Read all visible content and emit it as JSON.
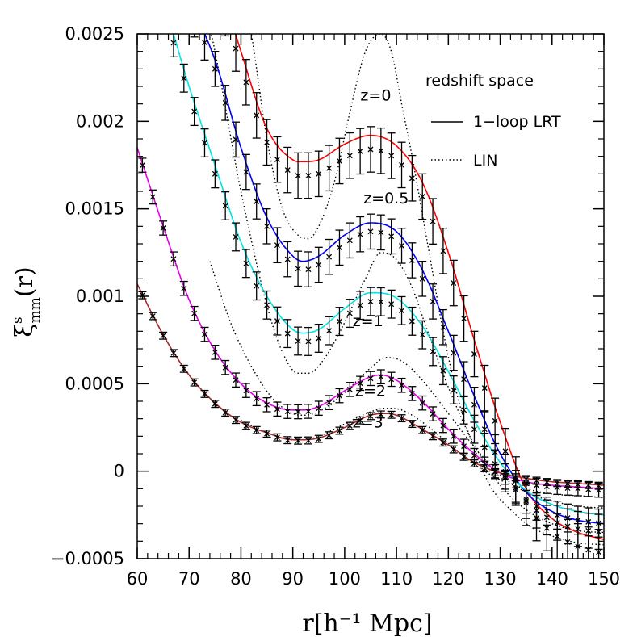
{
  "chart_data": {
    "type": "line",
    "xlabel": "r[h⁻¹ Mpc]",
    "ylabel": "ξˢmm(r)",
    "ylabel_parts": {
      "symbol": "ξ",
      "superscript": "s",
      "subscript": "mm",
      "arg": "(r)"
    },
    "xlim": [
      60,
      150
    ],
    "ylim": [
      -0.0005,
      0.0025
    ],
    "xticks": [
      60,
      70,
      80,
      90,
      100,
      110,
      120,
      130,
      140,
      150
    ],
    "xtick_labels": [
      "60",
      "70",
      "80",
      "90",
      "100",
      "110",
      "120",
      "130",
      "140",
      "150"
    ],
    "yticks": [
      -0.0005,
      0,
      0.0005,
      0.001,
      0.0015,
      0.002,
      0.0025
    ],
    "ytick_labels": [
      "−0.0005",
      "0",
      "0.0005",
      "0.001",
      "0.0015",
      "0.002",
      "0.0025"
    ],
    "grid": false,
    "legend": {
      "title": "redshift space",
      "position": "top-right",
      "entries": [
        {
          "label": "1−loop LRT",
          "style": "solid"
        },
        {
          "label": "LIN",
          "style": "dotted"
        }
      ]
    },
    "redshift_labels": [
      {
        "text": "z=0",
        "x": 106,
        "y": 0.00212
      },
      {
        "text": "z=0.5",
        "x": 108,
        "y": 0.00153
      },
      {
        "text": "z=1",
        "x": 104.5,
        "y": 0.00083
      },
      {
        "text": "z=2",
        "x": 105,
        "y": 0.00043
      },
      {
        "text": "z=3",
        "x": 104.5,
        "y": 0.00025
      }
    ],
    "series": [
      {
        "redshift": "z=0",
        "color": "#ff0000",
        "x": [
          76,
          80,
          85,
          90,
          92,
          95,
          100,
          105,
          110,
          115,
          120,
          125,
          130,
          135,
          140,
          145,
          150
        ],
        "values": [
          0.0028,
          0.0024,
          0.00196,
          0.00178,
          0.00177,
          0.00178,
          0.00187,
          0.00192,
          0.00186,
          0.00165,
          0.00125,
          0.00075,
          0.00028,
          -0.0001,
          -0.00027,
          -0.00035,
          -0.00039
        ]
      },
      {
        "redshift": "z=0.5",
        "color": "#0000ff",
        "x": [
          70,
          75,
          80,
          85,
          90,
          92,
          95,
          100,
          105,
          110,
          115,
          120,
          125,
          130,
          135,
          140,
          145,
          150
        ],
        "values": [
          0.0027,
          0.00235,
          0.00185,
          0.00145,
          0.00123,
          0.0012,
          0.00123,
          0.00135,
          0.00142,
          0.00137,
          0.00115,
          0.0008,
          0.00043,
          0.0001,
          -0.00012,
          -0.00023,
          -0.00028,
          -0.0003
        ]
      },
      {
        "redshift": "z=1",
        "color": "#00e5e5",
        "x": [
          66,
          70,
          75,
          80,
          85,
          90,
          92,
          95,
          100,
          105,
          110,
          115,
          120,
          125,
          130,
          135,
          140,
          145,
          150
        ],
        "values": [
          0.0026,
          0.0022,
          0.00175,
          0.00131,
          0.001,
          0.00081,
          0.00079,
          0.00081,
          0.00093,
          0.00102,
          0.00099,
          0.00083,
          0.00057,
          0.00029,
          5e-05,
          -0.00011,
          -0.00019,
          -0.00023,
          -0.00025
        ]
      },
      {
        "redshift": "z=2",
        "color": "#e800e8",
        "x": [
          60,
          65,
          70,
          75,
          80,
          85,
          90,
          92,
          95,
          100,
          105,
          107,
          110,
          115,
          120,
          125,
          130,
          135,
          140,
          145,
          150
        ],
        "values": [
          0.00185,
          0.0014,
          0.00098,
          0.00069,
          0.0005,
          0.00039,
          0.00035,
          0.00035,
          0.00037,
          0.00046,
          0.00054,
          0.00055,
          0.00052,
          0.0004,
          0.00024,
          0.0001,
          -1e-05,
          -6e-05,
          -8e-05,
          -9e-05,
          -0.0001
        ]
      },
      {
        "redshift": "z=3",
        "color": "#a52a2a",
        "x": [
          60,
          65,
          70,
          75,
          80,
          85,
          90,
          92,
          95,
          100,
          105,
          108,
          110,
          115,
          120,
          125,
          130,
          135,
          140,
          145,
          150
        ],
        "values": [
          0.00107,
          0.00078,
          0.00055,
          0.00039,
          0.00028,
          0.00022,
          0.00018,
          0.00018,
          0.00019,
          0.00025,
          0.00032,
          0.00033,
          0.00032,
          0.00024,
          0.00015,
          5e-05,
          -1e-05,
          -4e-05,
          -6e-05,
          -7e-05,
          -8e-05
        ]
      }
    ],
    "linear_curves": [
      {
        "redshift": "z=0",
        "x": [
          80,
          82,
          85,
          88,
          91,
          93,
          95,
          98,
          101,
          104,
          107,
          109,
          111,
          113,
          116,
          119,
          122,
          125,
          128,
          132,
          136,
          140,
          145,
          150
        ],
        "values": [
          0.0028,
          0.0025,
          0.0019,
          0.0015,
          0.00135,
          0.00133,
          0.0014,
          0.00165,
          0.00205,
          0.0024,
          0.0025,
          0.0024,
          0.0021,
          0.0018,
          0.0013,
          0.0008,
          0.0004,
          0.00013,
          -8e-05,
          -0.00022,
          -0.00032,
          -0.00037,
          -0.00041,
          -0.00042
        ]
      },
      {
        "redshift": "z=1",
        "x": [
          72,
          75,
          80,
          85,
          88,
          91,
          93,
          96,
          100,
          104,
          107,
          110,
          113,
          116,
          120,
          125,
          130,
          135,
          140,
          145,
          150
        ],
        "values": [
          0.0028,
          0.0024,
          0.0016,
          0.00095,
          0.00068,
          0.00056,
          0.00056,
          0.00064,
          0.00085,
          0.0011,
          0.00125,
          0.00121,
          0.00105,
          0.0008,
          0.00048,
          0.00015,
          -8e-05,
          -0.00022,
          -0.0003,
          -0.00034,
          -0.00035
        ]
      },
      {
        "redshift": "z=2",
        "x": [
          74,
          78,
          82,
          86,
          90,
          92,
          95,
          100,
          105,
          108,
          111,
          115,
          120,
          125,
          130,
          135,
          140,
          145,
          150
        ],
        "values": [
          0.0012,
          0.00085,
          0.0006,
          0.00042,
          0.00033,
          0.00032,
          0.00034,
          0.00045,
          0.00059,
          0.00065,
          0.00063,
          0.00052,
          0.00033,
          0.00014,
          -2e-05,
          -0.00012,
          -0.00017,
          -0.0002,
          -0.00021
        ]
      },
      {
        "redshift": "z=3",
        "x": [
          80,
          85,
          90,
          92,
          95,
          100,
          105,
          108,
          111,
          115,
          120,
          125,
          130,
          135,
          140,
          145,
          150
        ],
        "values": [
          0.00029,
          0.00022,
          0.00018,
          0.00018,
          0.0002,
          0.00027,
          0.00034,
          0.00036,
          0.00035,
          0.00028,
          0.00016,
          4e-05,
          -5e-05,
          -0.0001,
          -0.00013,
          -0.00014,
          -0.00015
        ]
      }
    ],
    "measurements": {
      "x": [
        61,
        63,
        65,
        67,
        69,
        71,
        73,
        75,
        77,
        79,
        81,
        83,
        85,
        87,
        89,
        91,
        93,
        95,
        97,
        99,
        101,
        103,
        105,
        107,
        109,
        111,
        113,
        115,
        117,
        119,
        121,
        123,
        125,
        127,
        129,
        131,
        133,
        135,
        137,
        139,
        141,
        143,
        145,
        147,
        149
      ],
      "sets": [
        {
          "redshift": "z=0",
          "x_from": 73,
          "values_from_model_offset": -8e-05,
          "errors": 0.00013
        },
        {
          "redshift": "z=0.5",
          "x_from": 67,
          "values_from_model_offset": -5e-05,
          "errors": 0.0001
        },
        {
          "redshift": "z=1",
          "x_from": 63,
          "values_from_model_offset": -5e-05,
          "errors": 8e-05
        },
        {
          "redshift": "z=2",
          "x_from": 61,
          "values_from_model_offset": -1e-05,
          "errors": 4e-05
        },
        {
          "redshift": "z=3",
          "x_from": 61,
          "values_from_model_offset": -5e-06,
          "errors": 2e-05
        }
      ]
    }
  }
}
